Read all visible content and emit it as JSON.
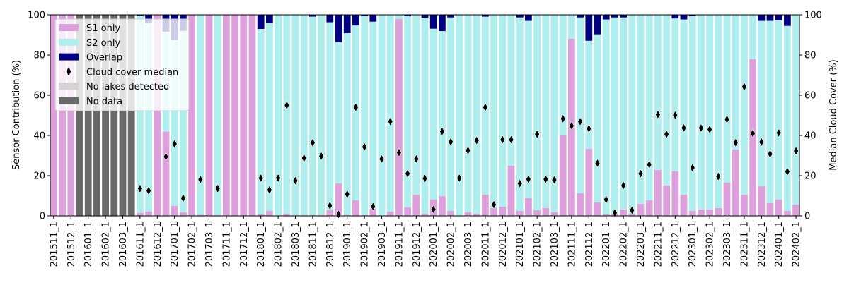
{
  "chart_data": {
    "type": "bar",
    "stacked": true,
    "ylabel": "Sensor Contribution (%)",
    "ylabel_right": "Median Cloud Cover (%)",
    "ylim": [
      0,
      100
    ],
    "ylim_right": [
      0,
      100
    ],
    "yticks": [
      0,
      20,
      40,
      60,
      80,
      100
    ],
    "legend_position": "top-left",
    "legend": [
      {
        "label": "S1 only",
        "color": "#dda0dd",
        "kind": "patch"
      },
      {
        "label": "S2 only",
        "color": "#afeeee",
        "kind": "patch"
      },
      {
        "label": "Overlap",
        "color": "#000080",
        "kind": "patch"
      },
      {
        "label": "Cloud cover median",
        "color": "#000000",
        "kind": "marker"
      },
      {
        "label": "No lakes detected",
        "color": "#d3d3d3",
        "kind": "patch"
      },
      {
        "label": "No data",
        "color": "#696969",
        "kind": "patch"
      }
    ],
    "tick_labels": [
      "201511_1",
      "201512_1",
      "201601_1",
      "201602_1",
      "201603_1",
      "201611_1",
      "201612_1",
      "201701_1",
      "201702_1",
      "201703_1",
      "201711_1",
      "201712_1",
      "201801_1",
      "201802_1",
      "201803_1",
      "201811_1",
      "201812_1",
      "201901_1",
      "201902_1",
      "201903_1",
      "201911_1",
      "201912_1",
      "202001_1",
      "202002_1",
      "202003_1",
      "202011_1",
      "202012_1",
      "202101_1",
      "202102_1",
      "202103_1",
      "202111_1",
      "202112_1",
      "202201_1",
      "202202_1",
      "202203_1",
      "202211_1",
      "202212_1",
      "202301_1",
      "202302_1",
      "202303_1",
      "202311_1",
      "202312_1",
      "202401_1",
      "202402_1"
    ],
    "no_data_bars": [
      3,
      4,
      5,
      6,
      7,
      8,
      9
    ],
    "s1_only": [
      100,
      100,
      100,
      0,
      0,
      0,
      0,
      0,
      0,
      0,
      1.5,
      2.2,
      100,
      42,
      5,
      1.8,
      100,
      0.5,
      100,
      0.3,
      100,
      100,
      100,
      100,
      0.7,
      2.5,
      0,
      1,
      0,
      0.3,
      0.3,
      0.3,
      2.8,
      16.1,
      0.3,
      7.7,
      0.3,
      3.5,
      0,
      2.1,
      97.9,
      4.2,
      10.5,
      1,
      8.1,
      9.8,
      2.5,
      0,
      1.8,
      1,
      10.5,
      3.9,
      4.6,
      24.9,
      2.5,
      8.8,
      2.8,
      3.9,
      1.8,
      40,
      88.1,
      11.2,
      33.3,
      6.7,
      0.7,
      0.7,
      3.2,
      1,
      6,
      7.7,
      22.8,
      15.1,
      22.1,
      10.5,
      2.5,
      3.2,
      3.2,
      3.9,
      16.5,
      33,
      10.5,
      77.9,
      14.7,
      6.3,
      8.1,
      2.5,
      5.6
    ],
    "overlap": [
      0,
      0,
      0,
      0,
      0,
      0,
      0,
      0,
      0,
      0,
      0.5,
      4.1,
      0,
      8.4,
      12.5,
      8,
      0,
      0,
      0,
      0,
      0,
      0,
      0,
      0,
      7,
      4.2,
      0,
      0,
      0,
      0,
      0.9,
      0,
      3.7,
      13.6,
      9.1,
      5.3,
      0.6,
      3.4,
      0,
      0,
      0,
      0.7,
      0,
      1.4,
      6.9,
      8.1,
      1.3,
      0,
      0,
      0,
      0.9,
      0,
      0,
      0,
      1.3,
      3,
      0,
      0,
      0,
      0,
      0,
      1.3,
      12.9,
      9.7,
      2.3,
      1.3,
      1.3,
      0,
      0,
      0,
      0,
      0,
      1.8,
      2.3,
      0.6,
      0,
      0,
      0,
      0,
      0,
      0,
      0,
      3,
      3,
      2.7,
      5.5,
      0
    ],
    "cloud_median": [
      null,
      null,
      null,
      null,
      null,
      null,
      null,
      null,
      null,
      null,
      13.6,
      12.5,
      null,
      29.4,
      35.8,
      8.8,
      null,
      18.1,
      null,
      13.6,
      null,
      null,
      null,
      null,
      18.8,
      12.9,
      18.8,
      55,
      17.5,
      28.7,
      36.4,
      29.7,
      5.1,
      0.8,
      10.8,
      54,
      34.3,
      4.6,
      28.3,
      46.9,
      31.5,
      21,
      28.3,
      18.6,
      3.2,
      42,
      36.8,
      18.8,
      32.5,
      37.5,
      54,
      5.6,
      37.9,
      37.9,
      16.1,
      18.2,
      40.6,
      18.2,
      17.9,
      48.3,
      44.8,
      46.9,
      43.4,
      26.2,
      8.1,
      1.5,
      15.1,
      2.8,
      21,
      25.5,
      50.4,
      40.6,
      50.1,
      43.7,
      23.9,
      43.7,
      43,
      19.6,
      48,
      36.4,
      64.2,
      41,
      36.7,
      30.8,
      41.3,
      22,
      32.3
    ]
  }
}
